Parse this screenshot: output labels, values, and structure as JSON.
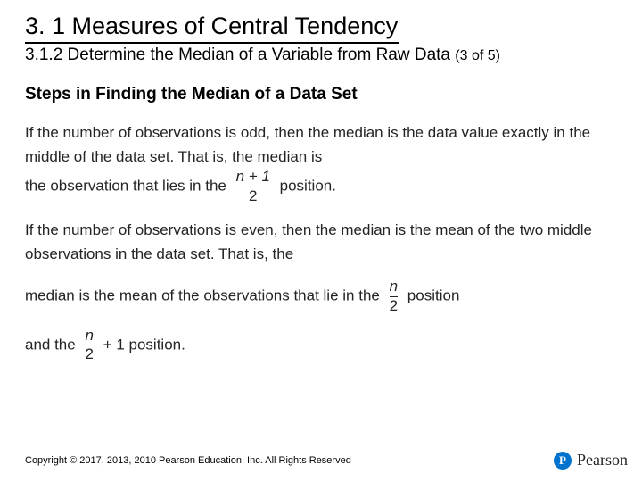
{
  "title": "3. 1 Measures of Central Tendency",
  "subtitle": "3.1.2 Determine the Median of a Variable from Raw Data",
  "pager": "(3 of 5)",
  "steps_heading": "Steps in Finding the Median of a Data Set",
  "para1_a": "If the number of observations is odd, then the median is the data value exactly in the middle of the data set. That is, the median is",
  "para1_b": "the observation that lies in the",
  "para1_c": "position.",
  "frac1_num": "n + 1",
  "frac1_den": "2",
  "para2": "If the number of observations is even, then the median is the mean of the two middle observations in the data set. That is, the",
  "para3_a": "median is the mean of the observations that lie in the",
  "para3_b": "position",
  "frac2_num": "n",
  "frac2_den": "2",
  "para4_a": "and the",
  "frac3_num": "n",
  "frac3_den": "2",
  "para4_plus": "+ 1",
  "para4_b": "position.",
  "copyright": "Copyright © 2017, 2013, 2010 Pearson Education, Inc. All Rights Reserved",
  "brand_initial": "P",
  "brand_name": "Pearson",
  "colors": {
    "text": "#000000",
    "body_text": "#242424",
    "brand_blue": "#0073cf",
    "background": "#ffffff"
  }
}
